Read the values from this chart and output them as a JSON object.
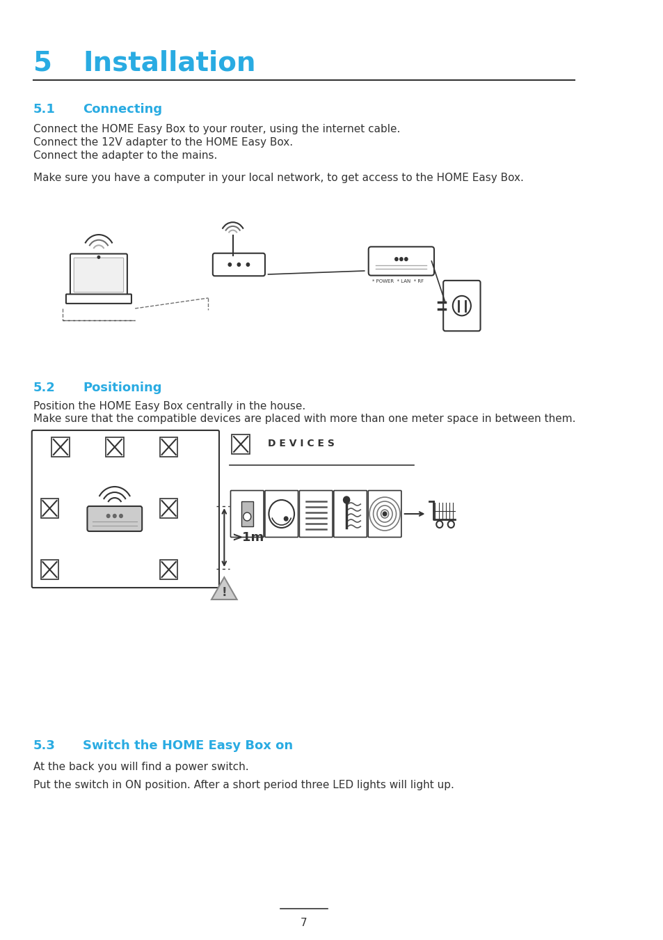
{
  "bg_color": "#ffffff",
  "cyan_color": "#29abe2",
  "dark_color": "#333333",
  "gray_color": "#555555",
  "light_gray": "#aaaaaa",
  "title_number": "5",
  "title_text": "Installation",
  "sec1_num": "5.1",
  "sec1_title": "Connecting",
  "sec1_body1": "Connect the HOME Easy Box to your router, using the internet cable.",
  "sec1_body2": "Connect the 12V adapter to the HOME Easy Box.",
  "sec1_body3": "Connect the adapter to the mains.",
  "sec1_body4": "Make sure you have a computer in your local network, to get access to the HOME Easy Box.",
  "sec2_num": "5.2",
  "sec2_title": "Positioning",
  "sec2_body1": "Position the HOME Easy Box centrally in the house.",
  "sec2_body2": "Make sure that the compatible devices are placed with more than one meter space in between them.",
  "sec3_num": "5.3",
  "sec3_title": "Switch the HOME Easy Box on",
  "sec3_body1": "At the back you will find a power switch.",
  "sec3_body2": "Put the switch in ON position. After a short period three LED lights will light up.",
  "page_num": "7",
  "devices_label": "D E V I C E S"
}
